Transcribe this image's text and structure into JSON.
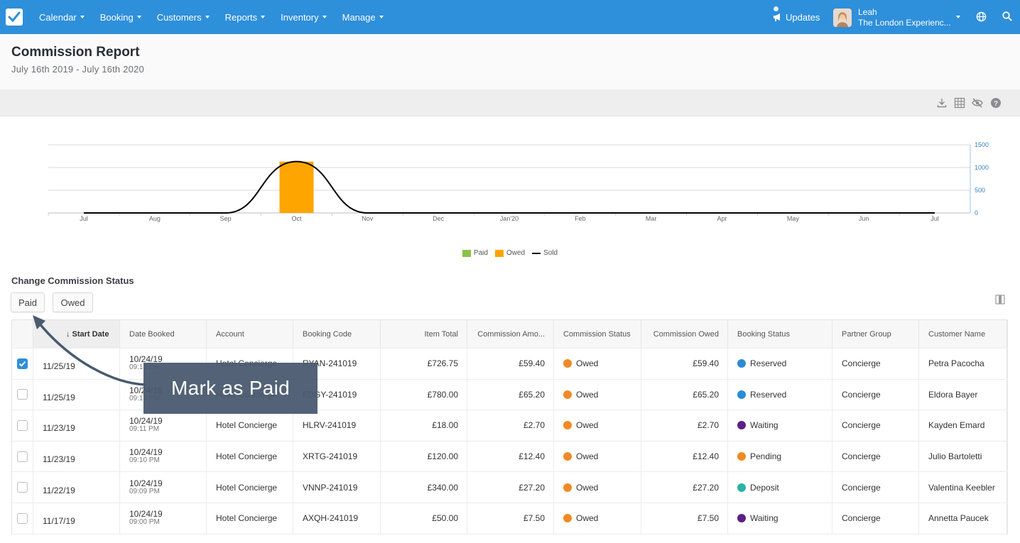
{
  "nav": {
    "items": [
      "Calendar",
      "Booking",
      "Customers",
      "Reports",
      "Inventory",
      "Manage"
    ],
    "updates_label": "Updates",
    "user_name": "Leah",
    "user_org": "The London Experienc..."
  },
  "page": {
    "title": "Commission Report",
    "subtitle": "July 16th 2019 - July 16th 2020"
  },
  "toolbar_icons": [
    "download-icon",
    "table-icon",
    "hide-icon",
    "help-icon"
  ],
  "chart_data": {
    "type": "bar",
    "categories": [
      "Jul",
      "Aug",
      "Sep",
      "Oct",
      "Nov",
      "Dec",
      "Jan'20",
      "Feb",
      "Mar",
      "Apr",
      "May",
      "Jun",
      "Jul"
    ],
    "series": [
      {
        "name": "Paid",
        "type": "bar",
        "color": "#8bc34a",
        "values": [
          0,
          0,
          0,
          0,
          0,
          0,
          0,
          0,
          0,
          0,
          0,
          0,
          0
        ]
      },
      {
        "name": "Owed",
        "type": "bar",
        "color": "#ffa500",
        "values": [
          0,
          0,
          0,
          1130,
          0,
          0,
          0,
          0,
          0,
          0,
          0,
          0,
          0
        ]
      },
      {
        "name": "Sold",
        "type": "line",
        "color": "#000000",
        "values": [
          0,
          0,
          0,
          1130,
          0,
          0,
          0,
          0,
          0,
          0,
          0,
          0,
          0
        ]
      }
    ],
    "yticks": [
      0,
      500,
      1000,
      1500
    ],
    "ylim": [
      0,
      1500
    ],
    "legend": "bottom-center"
  },
  "status": {
    "label": "Change Commission Status",
    "paid_button": "Paid",
    "owed_button": "Owed"
  },
  "table": {
    "columns": [
      "Start Date",
      "Date Booked",
      "Account",
      "Booking Code",
      "Item Total",
      "Commission Amo...",
      "Commission Status",
      "Commission Owed",
      "Booking Status",
      "Partner Group",
      "Customer Name"
    ],
    "sort_arrow": "↓",
    "rows": [
      {
        "checked": true,
        "start": "11/25/19",
        "booked_date": "10/24/19",
        "booked_time": "09:13 PM",
        "account": "Hotel Concierge",
        "code": "RYAN-241019",
        "item_total": "£726.75",
        "comm_amount": "£59.40",
        "comm_status": "Owed",
        "comm_owed": "£59.40",
        "booking_status": "Reserved",
        "booking_color": "#2a8bd6",
        "partner": "Concierge",
        "customer": "Petra Pacocha"
      },
      {
        "checked": false,
        "start": "11/25/19",
        "booked_date": "10/24/19",
        "booked_time": "09:13 PM",
        "account": "Hotel Concierge",
        "code": "FDGY-241019",
        "item_total": "£780.00",
        "comm_amount": "£65.20",
        "comm_status": "Owed",
        "comm_owed": "£65.20",
        "booking_status": "Reserved",
        "booking_color": "#2a8bd6",
        "partner": "Concierge",
        "customer": "Eldora Bayer"
      },
      {
        "checked": false,
        "start": "11/23/19",
        "booked_date": "10/24/19",
        "booked_time": "09:11 PM",
        "account": "Hotel Concierge",
        "code": "HLRV-241019",
        "item_total": "£18.00",
        "comm_amount": "£2.70",
        "comm_status": "Owed",
        "comm_owed": "£2.70",
        "booking_status": "Waiting",
        "booking_color": "#5b1f86",
        "partner": "Concierge",
        "customer": "Kayden Emard"
      },
      {
        "checked": false,
        "start": "11/23/19",
        "booked_date": "10/24/19",
        "booked_time": "09:10 PM",
        "account": "Hotel Concierge",
        "code": "XRTG-241019",
        "item_total": "£120.00",
        "comm_amount": "£12.40",
        "comm_status": "Owed",
        "comm_owed": "£12.40",
        "booking_status": "Pending",
        "booking_color": "#f08a24",
        "partner": "Concierge",
        "customer": "Julio Bartoletti"
      },
      {
        "checked": false,
        "start": "11/22/19",
        "booked_date": "10/24/19",
        "booked_time": "09:09 PM",
        "account": "Hotel Concierge",
        "code": "VNNP-241019",
        "item_total": "£340.00",
        "comm_amount": "£27.20",
        "comm_status": "Owed",
        "comm_owed": "£27.20",
        "booking_status": "Deposit",
        "booking_color": "#26b3a6",
        "partner": "Concierge",
        "customer": "Valentina Keebler"
      },
      {
        "checked": false,
        "start": "11/17/19",
        "booked_date": "10/24/19",
        "booked_time": "09:00 PM",
        "account": "Hotel Concierge",
        "code": "AXQH-241019",
        "item_total": "£50.00",
        "comm_amount": "£7.50",
        "comm_status": "Owed",
        "comm_owed": "£7.50",
        "booking_status": "Waiting",
        "booking_color": "#5b1f86",
        "partner": "Concierge",
        "customer": "Annetta Paucek"
      }
    ],
    "owed_color": "#f08a24"
  },
  "callout": {
    "text": "Mark as Paid"
  }
}
